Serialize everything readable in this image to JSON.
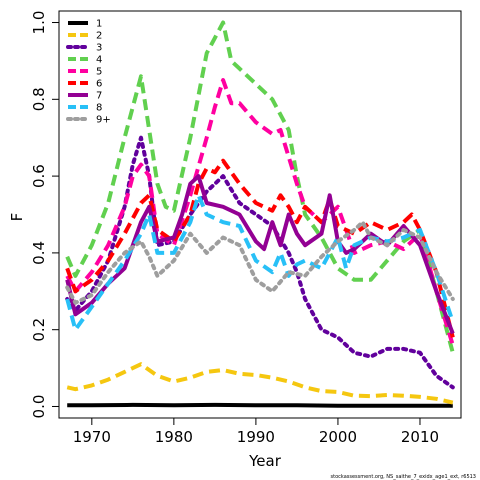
{
  "chart_data": {
    "type": "line",
    "title": "",
    "xlabel": "Year",
    "ylabel": "F",
    "xlim": [
      1966,
      2015
    ],
    "ylim": [
      -0.03,
      1.03
    ],
    "x_ticks": [
      1970,
      1980,
      1990,
      2000,
      2010
    ],
    "y_ticks": [
      0.0,
      0.2,
      0.4,
      0.6,
      0.8,
      1.0
    ],
    "y_tick_labels": [
      "0.0",
      "0.2",
      "0.4",
      "0.6",
      "0.8",
      "1.0"
    ],
    "grid": false,
    "legend_position": "top-left",
    "footnote": "stockassessment.org, NS_saithe_7_exidx_age1_ext, r6513",
    "series": [
      {
        "name": "1",
        "color": "#000000",
        "dash": "solid",
        "x": [
          1967,
          1970,
          1975,
          1980,
          1985,
          1990,
          1995,
          2000,
          2005,
          2010,
          2014
        ],
        "y": [
          0.003,
          0.003,
          0.004,
          0.003,
          0.004,
          0.003,
          0.003,
          0.002,
          0.002,
          0.002,
          0.002
        ]
      },
      {
        "name": "2",
        "color": "#F5C710",
        "dash": "dash",
        "x": [
          1967,
          1968,
          1970,
          1972,
          1974,
          1976,
          1978,
          1980,
          1982,
          1984,
          1986,
          1988,
          1990,
          1992,
          1994,
          1996,
          1998,
          2000,
          2002,
          2004,
          2006,
          2008,
          2010,
          2012,
          2014
        ],
        "y": [
          0.05,
          0.045,
          0.055,
          0.07,
          0.09,
          0.11,
          0.08,
          0.065,
          0.075,
          0.09,
          0.095,
          0.085,
          0.082,
          0.075,
          0.065,
          0.05,
          0.04,
          0.038,
          0.028,
          0.027,
          0.03,
          0.028,
          0.025,
          0.02,
          0.01
        ]
      },
      {
        "name": "3",
        "color": "#61009C",
        "dash": "dot",
        "x": [
          1967,
          1968,
          1970,
          1972,
          1974,
          1975,
          1976,
          1977,
          1978,
          1980,
          1982,
          1984,
          1986,
          1988,
          1990,
          1992,
          1994,
          1995,
          1996,
          1998,
          2000,
          2002,
          2004,
          2006,
          2008,
          2010,
          2012,
          2014
        ],
        "y": [
          0.28,
          0.25,
          0.3,
          0.38,
          0.52,
          0.63,
          0.7,
          0.6,
          0.42,
          0.43,
          0.5,
          0.56,
          0.6,
          0.53,
          0.5,
          0.47,
          0.4,
          0.35,
          0.28,
          0.2,
          0.18,
          0.14,
          0.13,
          0.15,
          0.15,
          0.14,
          0.08,
          0.05
        ]
      },
      {
        "name": "4",
        "color": "#61D04F",
        "dash": "dash",
        "x": [
          1967,
          1968,
          1970,
          1972,
          1974,
          1976,
          1977,
          1978,
          1979,
          1980,
          1982,
          1984,
          1985,
          1986,
          1987,
          1988,
          1990,
          1992,
          1994,
          1995,
          1996,
          1998,
          2000,
          2002,
          2004,
          2006,
          2008,
          2010,
          2012,
          2014
        ],
        "y": [
          0.39,
          0.34,
          0.42,
          0.53,
          0.7,
          0.86,
          0.72,
          0.58,
          0.52,
          0.51,
          0.7,
          0.92,
          0.96,
          1.0,
          0.9,
          0.88,
          0.84,
          0.8,
          0.72,
          0.6,
          0.5,
          0.44,
          0.36,
          0.33,
          0.33,
          0.38,
          0.43,
          0.46,
          0.3,
          0.14
        ]
      },
      {
        "name": "5",
        "color": "#FF00A0",
        "dash": "dash",
        "x": [
          1967,
          1968,
          1970,
          1972,
          1974,
          1975,
          1976,
          1977,
          1978,
          1980,
          1982,
          1984,
          1985,
          1986,
          1987,
          1988,
          1990,
          1992,
          1993,
          1994,
          1995,
          1996,
          1998,
          2000,
          2002,
          2004,
          2006,
          2008,
          2010,
          2012,
          2014
        ],
        "y": [
          0.34,
          0.3,
          0.35,
          0.42,
          0.52,
          0.6,
          0.63,
          0.6,
          0.45,
          0.42,
          0.55,
          0.7,
          0.78,
          0.85,
          0.79,
          0.79,
          0.74,
          0.71,
          0.72,
          0.65,
          0.58,
          0.52,
          0.48,
          0.52,
          0.4,
          0.42,
          0.43,
          0.41,
          0.45,
          0.3,
          0.16
        ]
      },
      {
        "name": "6",
        "color": "#FF0000",
        "dash": "dash",
        "x": [
          1967,
          1968,
          1970,
          1972,
          1974,
          1976,
          1977,
          1978,
          1980,
          1982,
          1983,
          1984,
          1985,
          1986,
          1988,
          1990,
          1992,
          1993,
          1994,
          1995,
          1996,
          1998,
          1999,
          2000,
          2002,
          2004,
          2006,
          2008,
          2009,
          2010,
          2012,
          2014
        ],
        "y": [
          0.36,
          0.3,
          0.33,
          0.38,
          0.45,
          0.53,
          0.55,
          0.46,
          0.43,
          0.5,
          0.58,
          0.62,
          0.61,
          0.64,
          0.58,
          0.53,
          0.51,
          0.55,
          0.52,
          0.48,
          0.52,
          0.48,
          0.54,
          0.47,
          0.45,
          0.48,
          0.46,
          0.48,
          0.5,
          0.46,
          0.35,
          0.18
        ]
      },
      {
        "name": "7",
        "color": "#930093",
        "dash": "solid",
        "x": [
          1967,
          1968,
          1970,
          1972,
          1974,
          1976,
          1977,
          1978,
          1980,
          1981,
          1982,
          1983,
          1984,
          1986,
          1988,
          1990,
          1991,
          1992,
          1993,
          1994,
          1995,
          1996,
          1998,
          1999,
          2000,
          2001,
          2002,
          2004,
          2006,
          2008,
          2010,
          2012,
          2014
        ],
        "y": [
          0.33,
          0.24,
          0.27,
          0.32,
          0.36,
          0.48,
          0.52,
          0.43,
          0.44,
          0.5,
          0.58,
          0.6,
          0.53,
          0.52,
          0.5,
          0.43,
          0.41,
          0.48,
          0.42,
          0.5,
          0.45,
          0.42,
          0.45,
          0.55,
          0.43,
          0.4,
          0.41,
          0.45,
          0.42,
          0.47,
          0.42,
          0.3,
          0.19
        ]
      },
      {
        "name": "8",
        "color": "#28C0F7",
        "dash": "dash",
        "x": [
          1967,
          1968,
          1970,
          1972,
          1974,
          1976,
          1977,
          1978,
          1980,
          1982,
          1983,
          1984,
          1986,
          1988,
          1990,
          1992,
          1993,
          1994,
          1995,
          1996,
          1998,
          2000,
          2001,
          2002,
          2004,
          2006,
          2008,
          2010,
          2012,
          2014
        ],
        "y": [
          0.28,
          0.2,
          0.26,
          0.32,
          0.38,
          0.45,
          0.5,
          0.4,
          0.4,
          0.48,
          0.55,
          0.5,
          0.48,
          0.47,
          0.38,
          0.35,
          0.4,
          0.34,
          0.37,
          0.38,
          0.36,
          0.44,
          0.36,
          0.42,
          0.44,
          0.43,
          0.44,
          0.46,
          0.35,
          0.22
        ]
      },
      {
        "name": "9+",
        "color": "#9E9E9E",
        "dash": "dot",
        "x": [
          1967,
          1968,
          1970,
          1972,
          1974,
          1976,
          1977,
          1978,
          1980,
          1982,
          1984,
          1986,
          1988,
          1990,
          1992,
          1994,
          1996,
          1998,
          2000,
          2002,
          2003,
          2004,
          2006,
          2008,
          2010,
          2012,
          2014
        ],
        "y": [
          0.31,
          0.27,
          0.29,
          0.35,
          0.4,
          0.43,
          0.39,
          0.34,
          0.38,
          0.45,
          0.4,
          0.44,
          0.42,
          0.33,
          0.3,
          0.35,
          0.34,
          0.39,
          0.43,
          0.46,
          0.48,
          0.44,
          0.42,
          0.46,
          0.44,
          0.35,
          0.28
        ]
      }
    ]
  }
}
